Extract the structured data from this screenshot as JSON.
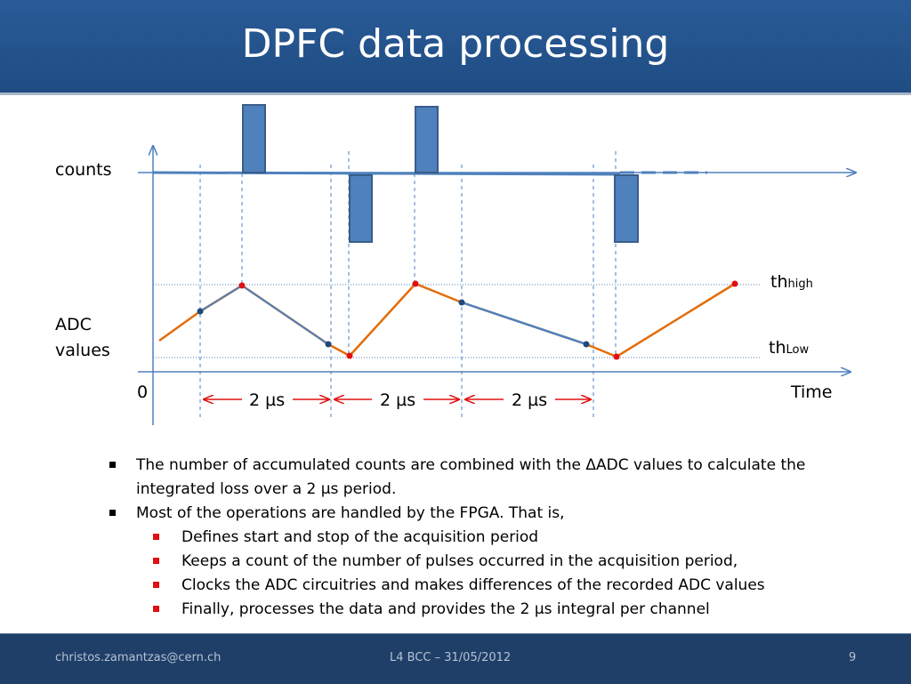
{
  "header": {
    "title": "DPFC data processing"
  },
  "diagram": {
    "counts_label": "counts",
    "adc_label_line1": "ADC",
    "adc_label_line2": "values",
    "zero_label": "0",
    "time_label": "Time",
    "th_high_main": "th",
    "th_high_sub": "high",
    "th_low_main": "th",
    "th_low_sub": "Low",
    "intervals": [
      "2 µs",
      "2 µs",
      "2 µs"
    ],
    "colors": {
      "axis": "#4f81bd",
      "trace": "#e36c09",
      "high_point": "#e01010",
      "sample_point": "#1f497d",
      "bar": "#4f81bd"
    }
  },
  "bullets": [
    {
      "text": "The number of accumulated counts are combined with the ΔADC values to calculate the integrated loss over a 2 µs period.",
      "sub": []
    },
    {
      "text": "Most of the operations are handled by the FPGA. That is,",
      "sub": [
        "Defines start and stop of the acquisition period",
        "Keeps a count of the number of pulses occurred in the acquisition period,",
        "Clocks the ADC circuitries and makes differences of the recorded ADC values",
        "Finally, processes the data and provides the 2 µs integral per channel"
      ]
    }
  ],
  "footer": {
    "email": "christos.zamantzas@cern.ch",
    "event": "L4 BCC – 31/05/2012",
    "page": "9"
  }
}
